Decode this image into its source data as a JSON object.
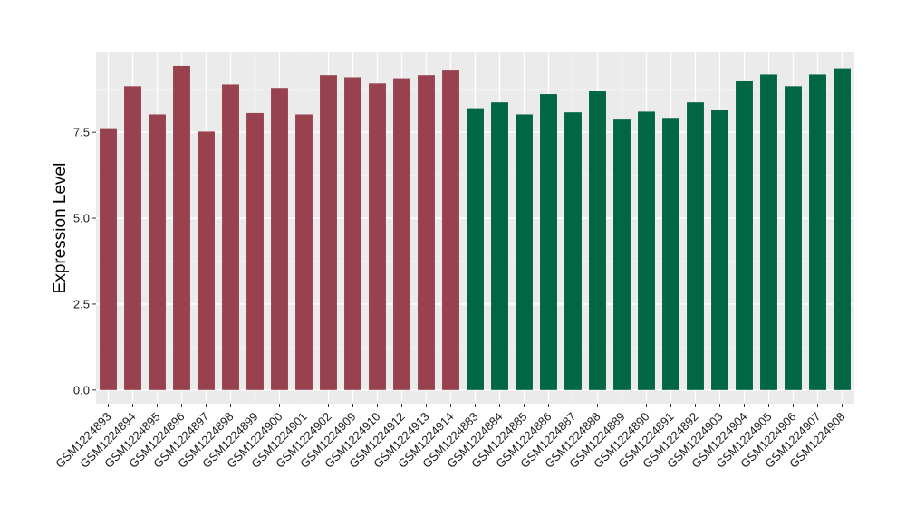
{
  "chart_data": {
    "type": "bar",
    "ylabel": "Expression Level",
    "xlabel": "",
    "ylim": [
      -0.4,
      9.85
    ],
    "y_ticks": [
      0.0,
      2.5,
      5.0,
      7.5
    ],
    "y_tick_labels": [
      "0.0",
      "2.5",
      "5.0",
      "7.5"
    ],
    "grid": true,
    "legend": "none",
    "background_color": "#ebebeb",
    "categories": [
      "GSM1224893",
      "GSM1224894",
      "GSM1224895",
      "GSM1224896",
      "GSM1224897",
      "GSM1224898",
      "GSM1224899",
      "GSM1224900",
      "GSM1224901",
      "GSM1224902",
      "GSM1224909",
      "GSM1224910",
      "GSM1224912",
      "GSM1224913",
      "GSM1224914",
      "GSM1224883",
      "GSM1224884",
      "GSM1224885",
      "GSM1224886",
      "GSM1224887",
      "GSM1224888",
      "GSM1224889",
      "GSM1224890",
      "GSM1224891",
      "GSM1224892",
      "GSM1224903",
      "GSM1224904",
      "GSM1224905",
      "GSM1224906",
      "GSM1224907",
      "GSM1224908"
    ],
    "values": [
      7.62,
      8.84,
      8.02,
      9.43,
      7.52,
      8.89,
      8.06,
      8.79,
      8.02,
      9.16,
      9.1,
      8.92,
      9.07,
      9.16,
      9.32,
      8.2,
      8.37,
      8.02,
      8.61,
      8.08,
      8.69,
      7.87,
      8.1,
      7.92,
      8.37,
      8.15,
      9.0,
      9.18,
      8.84,
      9.18,
      9.36
    ],
    "bar_colors": [
      "#99424f",
      "#99424f",
      "#99424f",
      "#99424f",
      "#99424f",
      "#99424f",
      "#99424f",
      "#99424f",
      "#99424f",
      "#99424f",
      "#99424f",
      "#99424f",
      "#99424f",
      "#99424f",
      "#99424f",
      "#006644",
      "#006644",
      "#006644",
      "#006644",
      "#006644",
      "#006644",
      "#006644",
      "#006644",
      "#006644",
      "#006644",
      "#006644",
      "#006644",
      "#006644",
      "#006644",
      "#006644",
      "#006644"
    ]
  }
}
